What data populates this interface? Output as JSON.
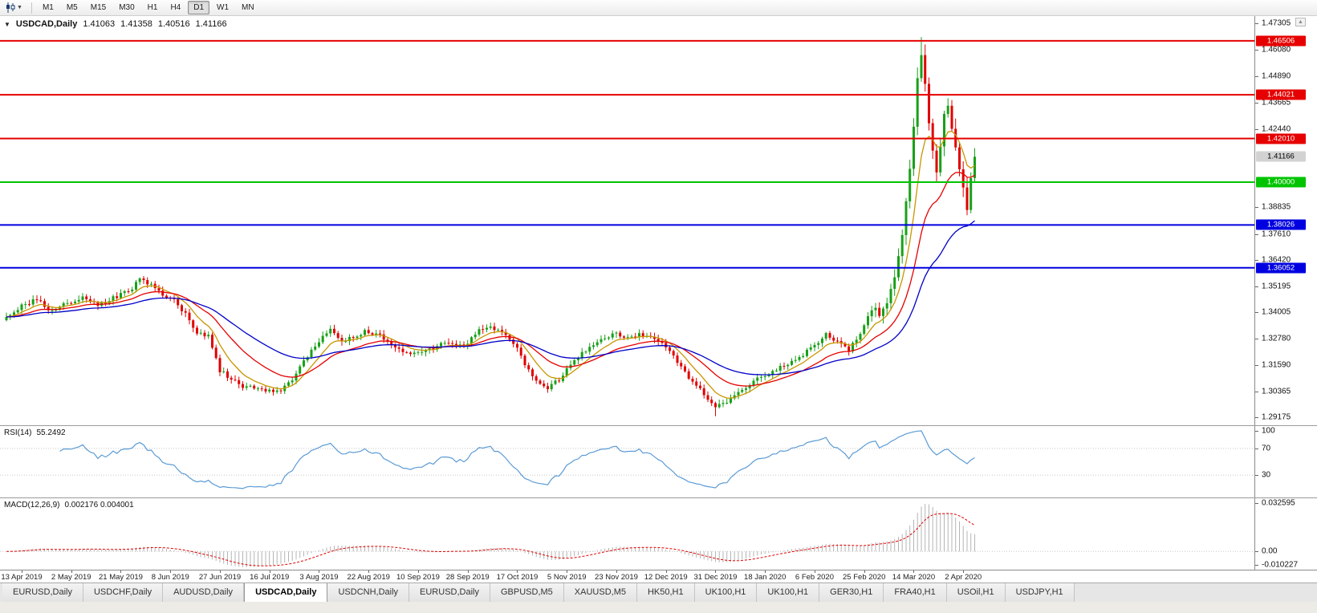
{
  "window": {
    "toolbar": {
      "timeframes": [
        "M1",
        "M5",
        "M15",
        "M30",
        "H1",
        "H4",
        "D1",
        "W1",
        "MN"
      ],
      "active_timeframe": "D1"
    }
  },
  "info_line": {
    "collapse_icon": "▼",
    "symbol": "USDCAD,Daily",
    "open": "1.41063",
    "high": "1.41358",
    "low": "1.40516",
    "close": "1.41166"
  },
  "panels": {
    "rsi_label": "RSI(14)",
    "rsi_value": "55.2492",
    "macd_label": "MACD(12,26,9)",
    "macd_values": "0.002176 0.004001"
  },
  "tabs": {
    "active_index": 3,
    "items": [
      "EURUSD,Daily",
      "USDCHF,Daily",
      "AUDUSD,Daily",
      "USDCAD,Daily",
      "USDCNH,Daily",
      "EURUSD,Daily",
      "GBPUSD,M5",
      "XAUUSD,M5",
      "HK50,H1",
      "UK100,H1",
      "UK100,H1",
      "GER30,H1",
      "FRA40,H1",
      "USOil,H1",
      "USDJPY,H1"
    ],
    "scroll_arrow": "▲"
  },
  "chart_data": {
    "type": "candlestick",
    "symbol": "USDCAD",
    "timeframe": "Daily",
    "last_ohlc": {
      "o": 1.41063,
      "h": 1.41358,
      "l": 1.40516,
      "c": 1.41166
    },
    "bars": 255,
    "high_extreme": 1.4668,
    "low_extreme": 1.2922,
    "y_range": {
      "min": 1.2895,
      "max": 1.475
    },
    "y_ticks": [
      "1.47305",
      "1.46080",
      "1.44890",
      "1.43665",
      "1.42440",
      "1.38835",
      "1.37610",
      "1.36420",
      "1.35195",
      "1.34005",
      "1.32780",
      "1.31590",
      "1.30365",
      "1.29175"
    ],
    "levels": [
      {
        "price": 1.46506,
        "label": "1.46506",
        "color": "#e60000",
        "text": "#ffffff"
      },
      {
        "price": 1.44021,
        "label": "1.44021",
        "color": "#e60000",
        "text": "#ffffff"
      },
      {
        "price": 1.4201,
        "label": "1.42010",
        "color": "#e60000",
        "text": "#ffffff"
      },
      {
        "price": 1.4,
        "label": "1.40000",
        "color": "#00c400",
        "text": "#ffffff"
      },
      {
        "price": 1.38026,
        "label": "1.38026",
        "color": "#0000e0",
        "text": "#ffffff"
      },
      {
        "price": 1.36052,
        "label": "1.36052",
        "color": "#0000e0",
        "text": "#ffffff"
      }
    ],
    "current_price_tag": {
      "price": 1.41166,
      "label": "1.41166",
      "color": "#d2d2d2",
      "text": "#000000"
    },
    "x_labels": [
      "13 Apr 2019",
      "2 May 2019",
      "21 May 2019",
      "8 Jun 2019",
      "27 Jun 2019",
      "16 Jul 2019",
      "3 Aug 2019",
      "22 Aug 2019",
      "10 Sep 2019",
      "28 Sep 2019",
      "17 Oct 2019",
      "5 Nov 2019",
      "23 Nov 2019",
      "12 Dec 2019",
      "31 Dec 2019",
      "18 Jan 2020",
      "6 Feb 2020",
      "25 Feb 2020",
      "14 Mar 2020",
      "2 Apr 2020"
    ],
    "colors": {
      "up": "#18a018",
      "down": "#e00000"
    },
    "mas": [
      {
        "name": "ma-fast",
        "period": 8,
        "color": "#c89600"
      },
      {
        "name": "ma-mid",
        "period": 20,
        "color": "#e60000"
      },
      {
        "name": "ma-slow",
        "period": 42,
        "color": "#0000c8"
      }
    ],
    "close_anchors": [
      [
        0,
        1.337
      ],
      [
        4,
        1.3432
      ],
      [
        8,
        1.3458
      ],
      [
        12,
        1.3406
      ],
      [
        16,
        1.3442
      ],
      [
        20,
        1.3472
      ],
      [
        24,
        1.343
      ],
      [
        28,
        1.3468
      ],
      [
        32,
        1.3498
      ],
      [
        35,
        1.3548
      ],
      [
        38,
        1.3522
      ],
      [
        41,
        1.3482
      ],
      [
        44,
        1.3452
      ],
      [
        47,
        1.3392
      ],
      [
        50,
        1.3312
      ],
      [
        53,
        1.3288
      ],
      [
        56,
        1.3132
      ],
      [
        59,
        1.3092
      ],
      [
        62,
        1.3062
      ],
      [
        65,
        1.3048
      ],
      [
        68,
        1.3042
      ],
      [
        71,
        1.3032
      ],
      [
        74,
        1.3072
      ],
      [
        77,
        1.3142
      ],
      [
        80,
        1.3232
      ],
      [
        83,
        1.3292
      ],
      [
        85,
        1.3322
      ],
      [
        88,
        1.3262
      ],
      [
        91,
        1.3288
      ],
      [
        94,
        1.3312
      ],
      [
        97,
        1.3298
      ],
      [
        100,
        1.3272
      ],
      [
        103,
        1.3232
      ],
      [
        106,
        1.3208
      ],
      [
        109,
        1.3222
      ],
      [
        112,
        1.3238
      ],
      [
        115,
        1.3262
      ],
      [
        118,
        1.3242
      ],
      [
        121,
        1.3258
      ],
      [
        124,
        1.3322
      ],
      [
        127,
        1.3332
      ],
      [
        130,
        1.3302
      ],
      [
        133,
        1.3262
      ],
      [
        136,
        1.3162
      ],
      [
        139,
        1.3082
      ],
      [
        142,
        1.3052
      ],
      [
        145,
        1.3092
      ],
      [
        148,
        1.3158
      ],
      [
        151,
        1.3212
      ],
      [
        154,
        1.3258
      ],
      [
        157,
        1.3282
      ],
      [
        160,
        1.3302
      ],
      [
        163,
        1.3288
      ],
      [
        166,
        1.3302
      ],
      [
        169,
        1.3292
      ],
      [
        172,
        1.3258
      ],
      [
        175,
        1.3198
      ],
      [
        178,
        1.3122
      ],
      [
        181,
        1.3062
      ],
      [
        184,
        1.3002
      ],
      [
        186,
        1.2962
      ],
      [
        188,
        1.2978
      ],
      [
        191,
        1.3012
      ],
      [
        194,
        1.3058
      ],
      [
        197,
        1.3092
      ],
      [
        200,
        1.3122
      ],
      [
        203,
        1.3148
      ],
      [
        206,
        1.3172
      ],
      [
        209,
        1.3208
      ],
      [
        212,
        1.3252
      ],
      [
        215,
        1.3298
      ],
      [
        218,
        1.3262
      ],
      [
        221,
        1.3228
      ],
      [
        224,
        1.3302
      ],
      [
        227,
        1.3422
      ],
      [
        229,
        1.3392
      ],
      [
        231,
        1.3432
      ],
      [
        233,
        1.3562
      ],
      [
        235,
        1.3752
      ],
      [
        237,
        1.4052
      ],
      [
        239,
        1.4482
      ],
      [
        240,
        1.4602
      ],
      [
        241,
        1.4432
      ],
      [
        242,
        1.4272
      ],
      [
        243,
        1.4142
      ],
      [
        244,
        1.4062
      ],
      [
        245,
        1.4172
      ],
      [
        246,
        1.4292
      ],
      [
        247,
        1.4352
      ],
      [
        248,
        1.4252
      ],
      [
        249,
        1.4152
      ],
      [
        250,
        1.4042
      ],
      [
        251,
        1.3958
      ],
      [
        252,
        1.3892
      ],
      [
        253,
        1.4002
      ],
      [
        254,
        1.41166
      ]
    ],
    "noise_zones": [
      {
        "until": 227,
        "amp": 0.0016
      },
      {
        "until": 233,
        "amp": 0.0028
      },
      {
        "until": 255,
        "amp": 0.0038
      }
    ],
    "rsi": {
      "period": 14,
      "value": 55.2492,
      "color": "#5b9bd5",
      "levels": [
        70,
        30
      ],
      "ticks": [
        "100",
        "70",
        "30"
      ],
      "tick_values": [
        100,
        70,
        30
      ]
    },
    "macd": {
      "fast": 12,
      "slow": 26,
      "signal": 9,
      "value": 0.002176,
      "signal_value": 0.004001,
      "range": {
        "min": -0.010227,
        "max": 0.032595
      },
      "ticks": [
        "0.032595",
        "0.00",
        "-0.010227"
      ],
      "tick_values": [
        0.032595,
        0,
        -0.010227
      ],
      "hist_color": "#b4b4b4",
      "signal_color": "#e00000"
    }
  }
}
